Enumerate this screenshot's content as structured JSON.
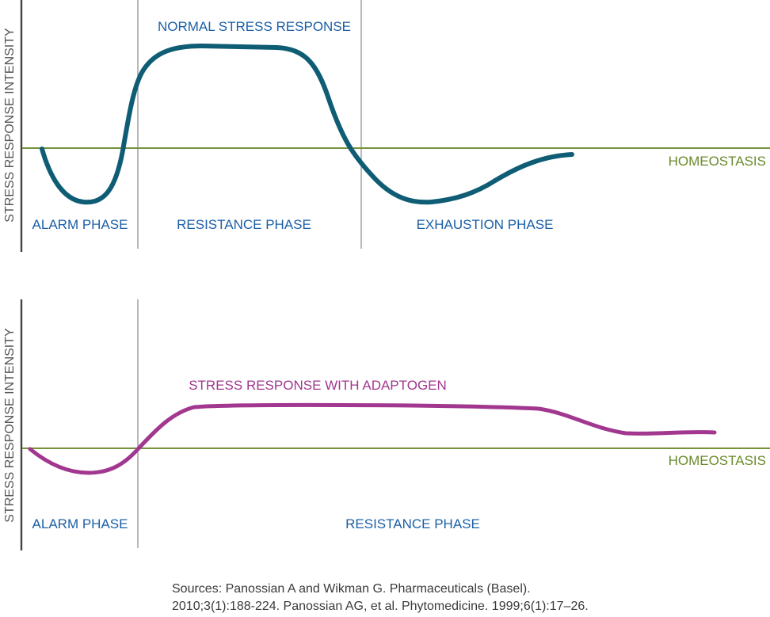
{
  "top_panel": {
    "y_axis_label": "STRESS RESPONSE INTENSITY",
    "curve_label": "NORMAL STRESS RESPONSE",
    "baseline_label": "HOMEOSTASIS",
    "phases": [
      "ALARM PHASE",
      "RESISTANCE PHASE",
      "EXHAUSTION PHASE"
    ],
    "curve_color": "#0f5d75"
  },
  "bottom_panel": {
    "y_axis_label": "STRESS RESPONSE INTENSITY",
    "curve_label": "STRESS RESPONSE WITH ADAPTOGEN",
    "baseline_label": "HOMEOSTASIS",
    "phases": [
      "ALARM PHASE",
      "RESISTANCE PHASE"
    ],
    "curve_color": "#a1378f"
  },
  "sources": {
    "line1": "Sources: Panossian A and Wikman G. Pharmaceuticals (Basel).",
    "line2": "2010;3(1):188-224. Panossian AG, et al. Phytomedicine. 1999;6(1):17–26."
  }
}
